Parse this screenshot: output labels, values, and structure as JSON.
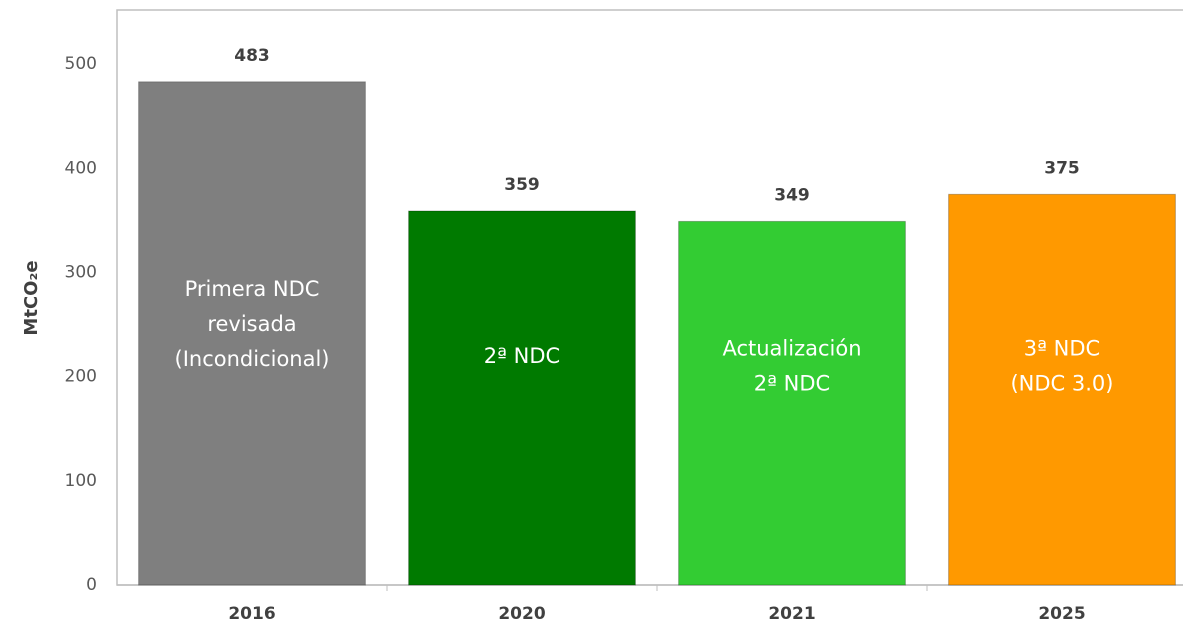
{
  "chart_data": {
    "type": "bar",
    "y_label": "MtCO₂e",
    "categories": [
      "2016",
      "2020",
      "2021",
      "2025"
    ],
    "values": [
      483,
      359,
      349,
      375
    ],
    "colors": [
      "#7f7f7f",
      "#007a00",
      "#33cc33",
      "#ff9900"
    ],
    "bar_labels": [
      [
        "Primera NDC",
        "revisada",
        "(Incondicional)"
      ],
      [
        "2ª NDC"
      ],
      [
        "Actualización",
        "2ª NDC"
      ],
      [
        "3ª NDC",
        "(NDC 3.0)"
      ]
    ],
    "ylim": [
      0,
      550
    ],
    "yticks": [
      0,
      100,
      200,
      300,
      400,
      500
    ],
    "grid": false
  }
}
